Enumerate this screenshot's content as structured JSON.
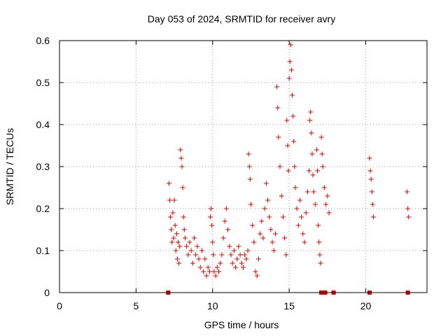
{
  "chart_data": {
    "type": "scatter",
    "title": "Day 053 of 2024, SRMTID for receiver avry",
    "xlabel": "GPS time / hours",
    "ylabel": "SRMTID / TECUs",
    "xlim": [
      0,
      24
    ],
    "ylim": [
      0,
      0.6
    ],
    "xticks": [
      0,
      5,
      10,
      15,
      20
    ],
    "xtick_labels": [
      "0",
      "5",
      "10",
      "15",
      "20"
    ],
    "yticks": [
      0,
      0.1,
      0.2,
      0.3,
      0.4,
      0.5,
      0.6
    ],
    "ytick_labels": [
      "0",
      "0.1",
      "0.2",
      "0.3",
      "0.4",
      "0.5",
      "0.6"
    ],
    "grid": true,
    "marker": "plus",
    "color": "#dd0000",
    "series": [
      {
        "name": "SRMTID",
        "points": [
          [
            7.15,
            0.26
          ],
          [
            7.2,
            0.22
          ],
          [
            7.25,
            0.18
          ],
          [
            7.3,
            0.15
          ],
          [
            7.35,
            0.12
          ],
          [
            7.4,
            0.19
          ],
          [
            7.45,
            0.13
          ],
          [
            7.5,
            0.22
          ],
          [
            7.55,
            0.16
          ],
          [
            7.6,
            0.1
          ],
          [
            7.65,
            0.14
          ],
          [
            7.7,
            0.08
          ],
          [
            7.75,
            0.12
          ],
          [
            7.8,
            0.07
          ],
          [
            7.85,
            0.11
          ],
          [
            7.9,
            0.34
          ],
          [
            7.95,
            0.32
          ],
          [
            8.0,
            0.3
          ],
          [
            8.05,
            0.25
          ],
          [
            8.1,
            0.18
          ],
          [
            8.15,
            0.15
          ],
          [
            8.2,
            0.13
          ],
          [
            8.3,
            0.11
          ],
          [
            8.4,
            0.09
          ],
          [
            8.5,
            0.12
          ],
          [
            8.6,
            0.1
          ],
          [
            8.7,
            0.07
          ],
          [
            8.8,
            0.13
          ],
          [
            8.9,
            0.09
          ],
          [
            9.0,
            0.11
          ],
          [
            9.1,
            0.08
          ],
          [
            9.2,
            0.06
          ],
          [
            9.3,
            0.1
          ],
          [
            9.4,
            0.05
          ],
          [
            9.5,
            0.08
          ],
          [
            9.6,
            0.04
          ],
          [
            9.7,
            0.06
          ],
          [
            9.8,
            0.05
          ],
          [
            9.85,
            0.18
          ],
          [
            9.9,
            0.2
          ],
          [
            9.95,
            0.16
          ],
          [
            10.0,
            0.12
          ],
          [
            10.05,
            0.09
          ],
          [
            10.1,
            0.05
          ],
          [
            10.2,
            0.04
          ],
          [
            10.3,
            0.06
          ],
          [
            10.4,
            0.05
          ],
          [
            10.5,
            0.07
          ],
          [
            10.6,
            0.09
          ],
          [
            10.7,
            0.13
          ],
          [
            10.8,
            0.17
          ],
          [
            10.9,
            0.2
          ],
          [
            11.0,
            0.15
          ],
          [
            11.1,
            0.11
          ],
          [
            11.2,
            0.09
          ],
          [
            11.3,
            0.07
          ],
          [
            11.4,
            0.1
          ],
          [
            11.5,
            0.06
          ],
          [
            11.6,
            0.08
          ],
          [
            11.7,
            0.11
          ],
          [
            11.8,
            0.09
          ],
          [
            11.9,
            0.07
          ],
          [
            12.0,
            0.06
          ],
          [
            12.1,
            0.09
          ],
          [
            12.2,
            0.08
          ],
          [
            12.3,
            0.1
          ],
          [
            12.35,
            0.33
          ],
          [
            12.4,
            0.3
          ],
          [
            12.45,
            0.27
          ],
          [
            12.5,
            0.21
          ],
          [
            12.6,
            0.16
          ],
          [
            12.7,
            0.12
          ],
          [
            12.8,
            0.05
          ],
          [
            12.9,
            0.04
          ],
          [
            13.0,
            0.08
          ],
          [
            13.1,
            0.14
          ],
          [
            13.2,
            0.17
          ],
          [
            13.3,
            0.13
          ],
          [
            13.4,
            0.2
          ],
          [
            13.5,
            0.26
          ],
          [
            13.6,
            0.22
          ],
          [
            13.7,
            0.18
          ],
          [
            13.8,
            0.15
          ],
          [
            13.9,
            0.12
          ],
          [
            14.0,
            0.1
          ],
          [
            14.1,
            0.14
          ],
          [
            14.2,
            0.49
          ],
          [
            14.25,
            0.44
          ],
          [
            14.3,
            0.37
          ],
          [
            14.4,
            0.3
          ],
          [
            14.5,
            0.23
          ],
          [
            14.6,
            0.18
          ],
          [
            14.7,
            0.13
          ],
          [
            14.8,
            0.09
          ],
          [
            14.85,
            0.41
          ],
          [
            14.9,
            0.35
          ],
          [
            14.95,
            0.29
          ],
          [
            15.0,
            0.51
          ],
          [
            15.05,
            0.55
          ],
          [
            15.1,
            0.59
          ],
          [
            15.15,
            0.53
          ],
          [
            15.2,
            0.47
          ],
          [
            15.25,
            0.42
          ],
          [
            15.3,
            0.36
          ],
          [
            15.35,
            0.3
          ],
          [
            15.4,
            0.25
          ],
          [
            15.5,
            0.2
          ],
          [
            15.6,
            0.16
          ],
          [
            15.7,
            0.22
          ],
          [
            15.8,
            0.18
          ],
          [
            15.9,
            0.14
          ],
          [
            16.0,
            0.12
          ],
          [
            16.1,
            0.19
          ],
          [
            16.2,
            0.24
          ],
          [
            16.3,
            0.29
          ],
          [
            16.35,
            0.41
          ],
          [
            16.4,
            0.43
          ],
          [
            16.45,
            0.38
          ],
          [
            16.5,
            0.33
          ],
          [
            16.55,
            0.28
          ],
          [
            16.6,
            0.24
          ],
          [
            16.7,
            0.21
          ],
          [
            16.8,
            0.34
          ],
          [
            16.85,
            0.29
          ],
          [
            16.9,
            0.16
          ],
          [
            16.95,
            0.12
          ],
          [
            17.0,
            0.09
          ],
          [
            17.05,
            0.07
          ],
          [
            17.1,
            0.37
          ],
          [
            17.15,
            0.33
          ],
          [
            17.2,
            0.3
          ],
          [
            17.3,
            0.25
          ],
          [
            17.4,
            0.21
          ],
          [
            17.5,
            0.23
          ],
          [
            17.6,
            0.19
          ],
          [
            20.25,
            0.32
          ],
          [
            20.3,
            0.29
          ],
          [
            20.35,
            0.27
          ],
          [
            20.4,
            0.24
          ],
          [
            20.45,
            0.21
          ],
          [
            20.5,
            0.18
          ],
          [
            22.7,
            0.24
          ],
          [
            22.75,
            0.2
          ],
          [
            22.8,
            0.18
          ]
        ]
      }
    ],
    "zero_marks_x": [
      7.1,
      17.1,
      17.2,
      17.35,
      17.9,
      20.25,
      22.75
    ]
  }
}
